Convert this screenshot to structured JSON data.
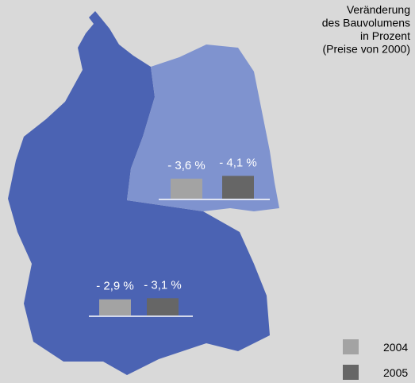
{
  "chart_data": {
    "type": "bar",
    "title_lines": [
      "Veränderung",
      "des Bauvolumens",
      "in Prozent",
      "(Preise von 2000)"
    ],
    "categories": [
      null,
      null
    ],
    "series": [
      {
        "name": "2004",
        "color": "#a3a3a3",
        "values": [
          -3.6,
          -2.9
        ],
        "value_labels": [
          "- 3,6 %",
          "- 2,9 %"
        ]
      },
      {
        "name": "2005",
        "color": "#666666",
        "values": [
          -4.1,
          -3.1
        ],
        "value_labels": [
          "- 4,1 %",
          "- 3,1 %"
        ]
      }
    ]
  }
}
